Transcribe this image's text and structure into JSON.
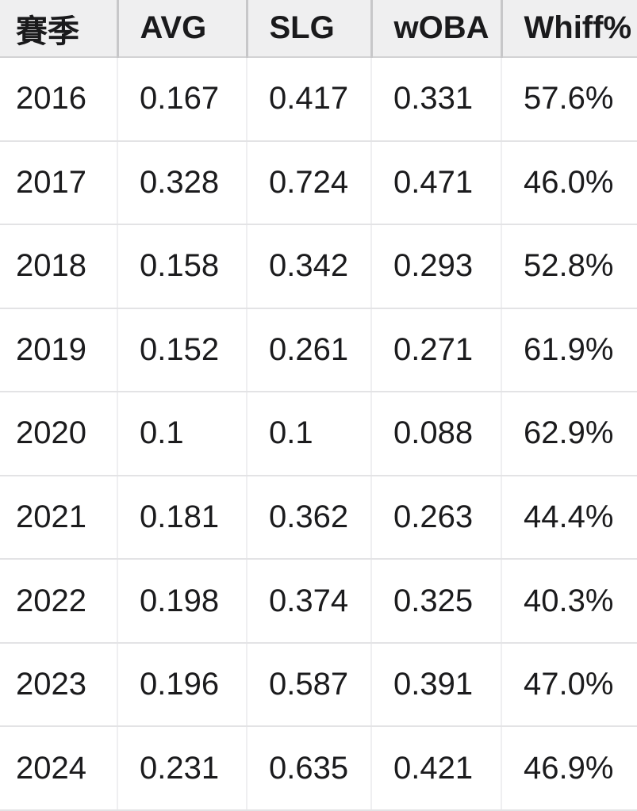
{
  "chart_data": {
    "type": "table",
    "columns": [
      "賽季",
      "AVG",
      "SLG",
      "wOBA",
      "Whiff%"
    ],
    "rows": [
      [
        "2016",
        "0.167",
        "0.417",
        "0.331",
        "57.6%"
      ],
      [
        "2017",
        "0.328",
        "0.724",
        "0.471",
        "46.0%"
      ],
      [
        "2018",
        "0.158",
        "0.342",
        "0.293",
        "52.8%"
      ],
      [
        "2019",
        "0.152",
        "0.261",
        "0.271",
        "61.9%"
      ],
      [
        "2020",
        "0.1",
        "0.1",
        "0.088",
        "62.9%"
      ],
      [
        "2021",
        "0.181",
        "0.362",
        "0.263",
        "44.4%"
      ],
      [
        "2022",
        "0.198",
        "0.374",
        "0.325",
        "40.3%"
      ],
      [
        "2023",
        "0.196",
        "0.587",
        "0.391",
        "47.0%"
      ],
      [
        "2024",
        "0.231",
        "0.635",
        "0.421",
        "46.9%"
      ]
    ]
  },
  "colors": {
    "header_bg": "#efeff0",
    "body_bg": "#ffffff",
    "text": "#1a1a1c",
    "header_column_divider": "#c7c7c9",
    "header_bottom_border": "#d2d2d4",
    "body_column_divider": "#efeff1",
    "row_divider": "#e3e3e5"
  }
}
